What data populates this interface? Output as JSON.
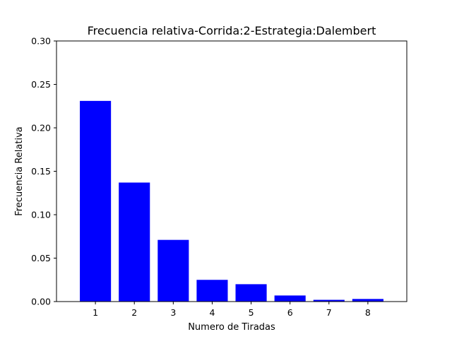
{
  "chart_data": {
    "type": "bar",
    "title": "Frecuencia relativa-Corrida:2-Estrategia:Dalembert",
    "xlabel": "Numero de Tiradas",
    "ylabel": "Frecuencia Relativa",
    "categories": [
      "1",
      "2",
      "3",
      "4",
      "5",
      "6",
      "7",
      "8"
    ],
    "values": [
      0.231,
      0.137,
      0.071,
      0.025,
      0.02,
      0.007,
      0.002,
      0.003
    ],
    "ylim": [
      0,
      0.3
    ],
    "yticks": [
      "0.00",
      "0.05",
      "0.10",
      "0.15",
      "0.20",
      "0.25",
      "0.30"
    ],
    "grid": false,
    "bar_color": "#0000ff"
  }
}
